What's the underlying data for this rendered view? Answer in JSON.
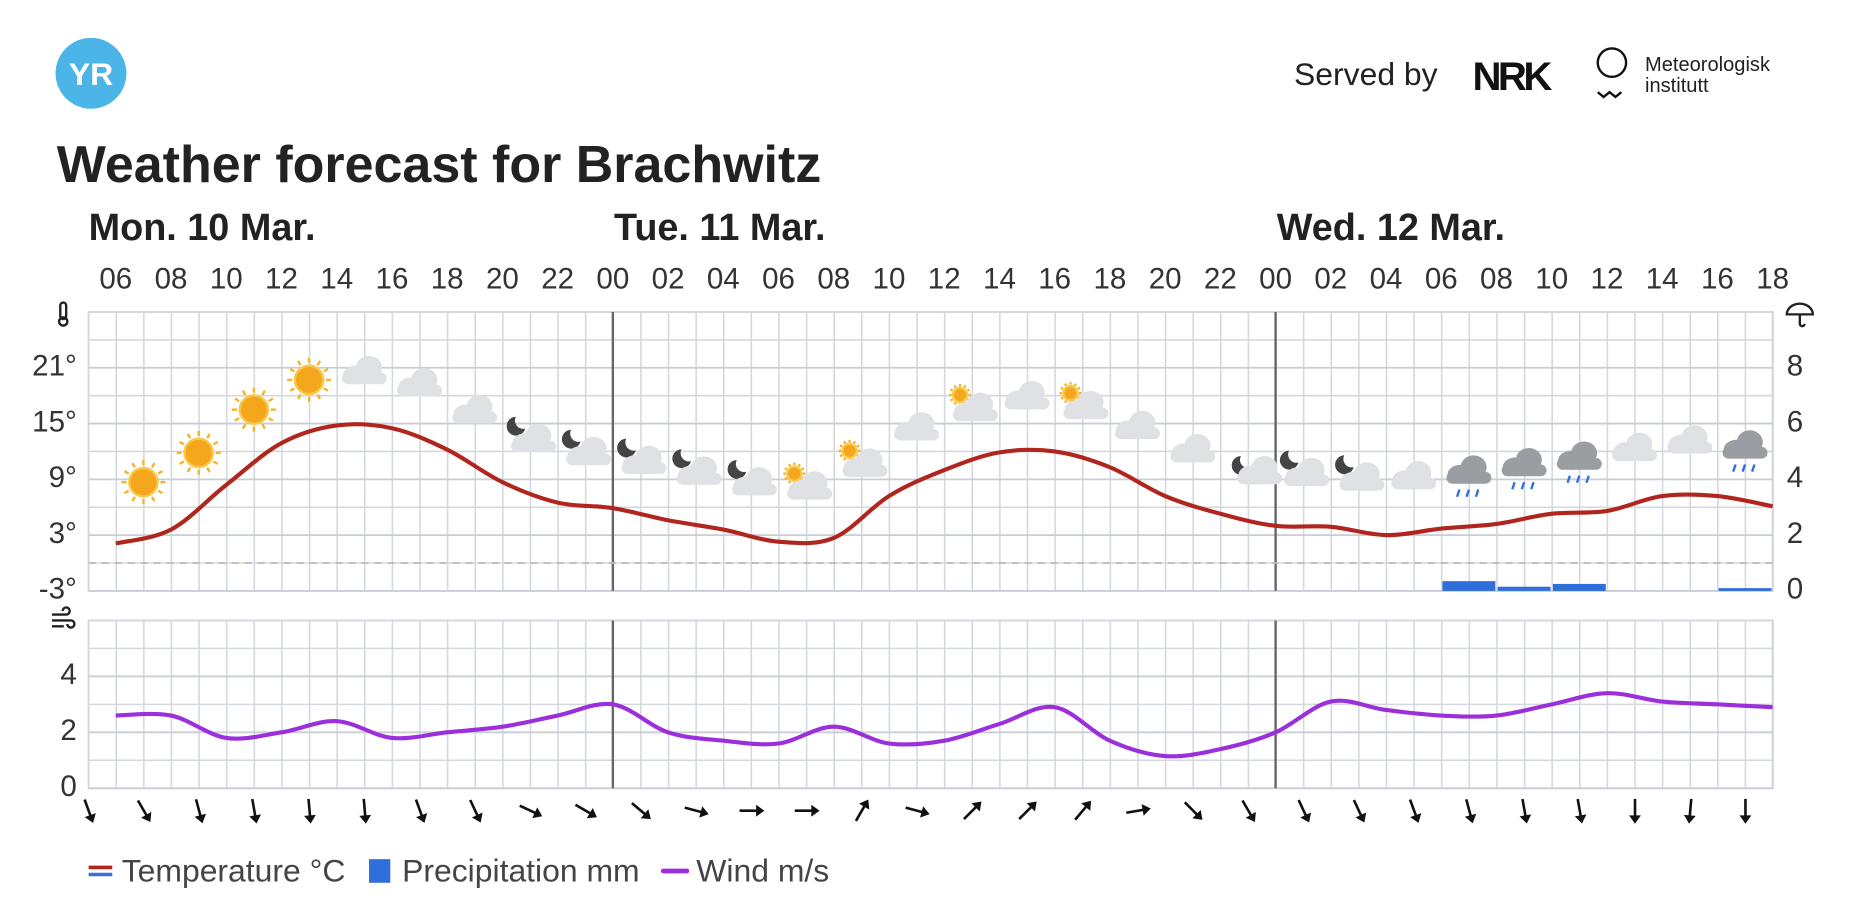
{
  "header": {
    "logo": "YR",
    "served_by": "Served by",
    "nrk": "NRK",
    "met": [
      "Meteorologisk",
      "institutt"
    ]
  },
  "chart_data": [
    {
      "type": "line",
      "title": "Weather forecast for Brachwitz",
      "days": [
        "Mon. 10 Mar.",
        "Tue. 11 Mar.",
        "Wed. 12 Mar."
      ],
      "categories": [
        "06",
        "08",
        "10",
        "12",
        "14",
        "16",
        "18",
        "20",
        "22",
        "00",
        "02",
        "04",
        "06",
        "08",
        "10",
        "12",
        "14",
        "16",
        "18",
        "20",
        "22",
        "00",
        "02",
        "04",
        "06",
        "08",
        "10",
        "12",
        "14",
        "16",
        "18"
      ],
      "series": [
        {
          "name": "Temperature °C",
          "color": "#b0261e",
          "values": [
            2.1,
            3.6,
            8.4,
            12.9,
            14.8,
            14.5,
            12.2,
            8.7,
            6.5,
            5.9,
            4.6,
            3.6,
            2.3,
            2.7,
            7.2,
            10,
            11.9,
            12,
            10.3,
            7.2,
            5.3,
            4,
            3.9,
            3,
            3.7,
            4.2,
            5.3,
            5.6,
            7.2,
            7.2,
            6.1
          ]
        },
        {
          "name": "Precipitation mm",
          "color": "#2f6fdc",
          "type": "bar",
          "axis": "y2",
          "values": [
            0,
            0,
            0,
            0,
            0,
            0,
            0,
            0,
            0,
            0,
            0,
            0,
            0,
            0,
            0,
            0,
            0,
            0,
            0,
            0,
            0,
            0,
            0,
            0,
            0.35,
            0.15,
            0.25,
            0,
            0,
            0.1,
            0
          ]
        }
      ],
      "ylim": [
        -3,
        27
      ],
      "yticks": [
        {
          "value": -3,
          "label": "-3°"
        },
        {
          "value": 3,
          "label": "3°"
        },
        {
          "value": 9,
          "label": "9°"
        },
        {
          "value": 15,
          "label": "15°"
        },
        {
          "value": 21,
          "label": "21°"
        }
      ],
      "y2lim": [
        0,
        10
      ],
      "y2ticks": [
        0,
        2,
        4,
        6,
        8
      ],
      "grid": true
    },
    {
      "type": "line",
      "series": [
        {
          "name": "Wind m/s",
          "color": "#9b2fdc",
          "values": [
            2.6,
            2.6,
            1.8,
            2.0,
            2.4,
            1.8,
            2.0,
            2.2,
            2.6,
            3.0,
            2.0,
            1.7,
            1.6,
            2.2,
            1.6,
            1.7,
            2.3,
            2.9,
            1.7,
            1.15,
            1.4,
            2.0,
            3.1,
            2.8,
            2.6,
            2.6,
            3.0,
            3.4,
            3.1,
            3.0,
            2.9
          ],
          "directions": [
            160,
            150,
            165,
            170,
            175,
            175,
            160,
            155,
            115,
            120,
            130,
            105,
            90,
            90,
            30,
            105,
            45,
            45,
            40,
            80,
            135,
            150,
            155,
            155,
            160,
            165,
            170,
            170,
            180,
            185,
            180
          ]
        }
      ],
      "ylim": [
        0,
        6
      ],
      "yticks": [
        0,
        2,
        4
      ],
      "grid": true
    }
  ]
}
